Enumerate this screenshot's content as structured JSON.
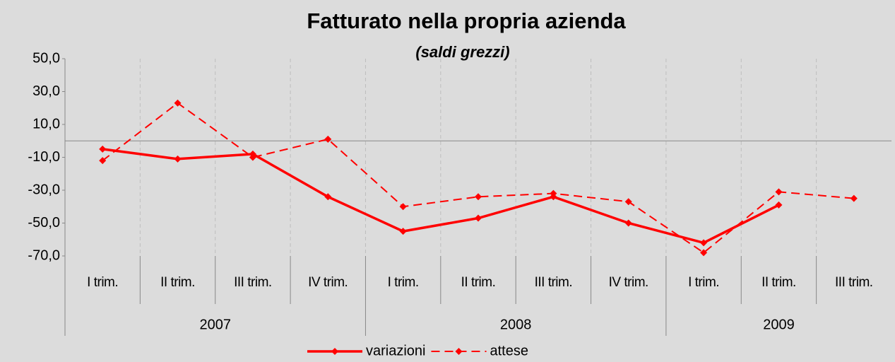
{
  "chart_data": {
    "type": "line",
    "title": "Fatturato nella propria azienda",
    "subtitle": "(saldi grezzi)",
    "categories": [
      "I trim.",
      "II trim.",
      "III trim.",
      "IV  trim.",
      "I trim.",
      "II trim.",
      "III trim.",
      "IV  trim.",
      "I trim.",
      "II trim.",
      "III trim."
    ],
    "groups": [
      {
        "label": "2007",
        "span": 4
      },
      {
        "label": "2008",
        "span": 4
      },
      {
        "label": "2009",
        "span": 3
      }
    ],
    "series": [
      {
        "name": "variazioni",
        "color": "#ff0000",
        "dashed": false,
        "values": [
          -5,
          -11,
          -8,
          -34,
          -55,
          -47,
          -34,
          -50,
          -62,
          -39,
          null
        ]
      },
      {
        "name": "attese",
        "color": "#ff0000",
        "dashed": true,
        "values": [
          -12,
          23,
          -10,
          1,
          -40,
          -34,
          -32,
          -37,
          -68,
          -31,
          -35
        ]
      }
    ],
    "ylim": [
      -70,
      50
    ],
    "yticks": [
      {
        "value": -70,
        "label": "-70,0"
      },
      {
        "value": -50,
        "label": "-50,0"
      },
      {
        "value": -30,
        "label": "-30,0"
      },
      {
        "value": -10,
        "label": "-10,0"
      },
      {
        "value": 10,
        "label": "10,0"
      },
      {
        "value": 30,
        "label": "30,0"
      },
      {
        "value": 50,
        "label": "50,0"
      }
    ],
    "legend": "bottom"
  }
}
